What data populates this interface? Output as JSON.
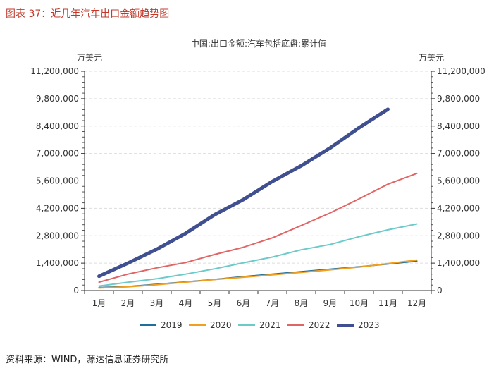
{
  "figure": {
    "title": "图表 37：近几年汽车出口金额趋势图",
    "source": "资料来源：WIND，源达信息证券研究所"
  },
  "chart_data": {
    "type": "line",
    "title": "中国:出口金额:汽车包括底盘:累计值",
    "unit_left": "万美元",
    "unit_right": "万美元",
    "categories": [
      "1月",
      "2月",
      "3月",
      "4月",
      "5月",
      "6月",
      "7月",
      "8月",
      "9月",
      "10月",
      "11月",
      "12月"
    ],
    "ylim": [
      0,
      11200000
    ],
    "yticks": [
      0,
      1400000,
      2800000,
      4200000,
      5600000,
      7000000,
      8400000,
      9800000,
      11200000
    ],
    "ytick_labels": [
      "0",
      "1,400,000",
      "2,800,000",
      "4,200,000",
      "5,600,000",
      "7,000,000",
      "8,400,000",
      "9,800,000",
      "11,200,000"
    ],
    "grid": true,
    "legend_position": "bottom",
    "series": [
      {
        "name": "2019",
        "color": "#1f6e9c",
        "width": 2,
        "values": [
          150000,
          200000,
          320000,
          440000,
          570000,
          710000,
          840000,
          960000,
          1090000,
          1210000,
          1360000,
          1500000
        ]
      },
      {
        "name": "2020",
        "color": "#f0a020",
        "width": 2,
        "values": [
          130000,
          190000,
          300000,
          430000,
          560000,
          680000,
          800000,
          930000,
          1060000,
          1200000,
          1380000,
          1560000
        ]
      },
      {
        "name": "2021",
        "color": "#6ccac9",
        "width": 2,
        "values": [
          230000,
          420000,
          600000,
          840000,
          1110000,
          1420000,
          1710000,
          2080000,
          2350000,
          2750000,
          3100000,
          3400000
        ]
      },
      {
        "name": "2022",
        "color": "#e06666",
        "width": 2,
        "values": [
          430000,
          840000,
          1160000,
          1430000,
          1840000,
          2210000,
          2690000,
          3320000,
          3960000,
          4680000,
          5430000,
          5980000
        ]
      },
      {
        "name": "2023",
        "color": "#3f4f8f",
        "width": 5,
        "values": [
          730000,
          1400000,
          2110000,
          2920000,
          3870000,
          4650000,
          5570000,
          6370000,
          7280000,
          8310000,
          9260000,
          null
        ]
      }
    ]
  }
}
